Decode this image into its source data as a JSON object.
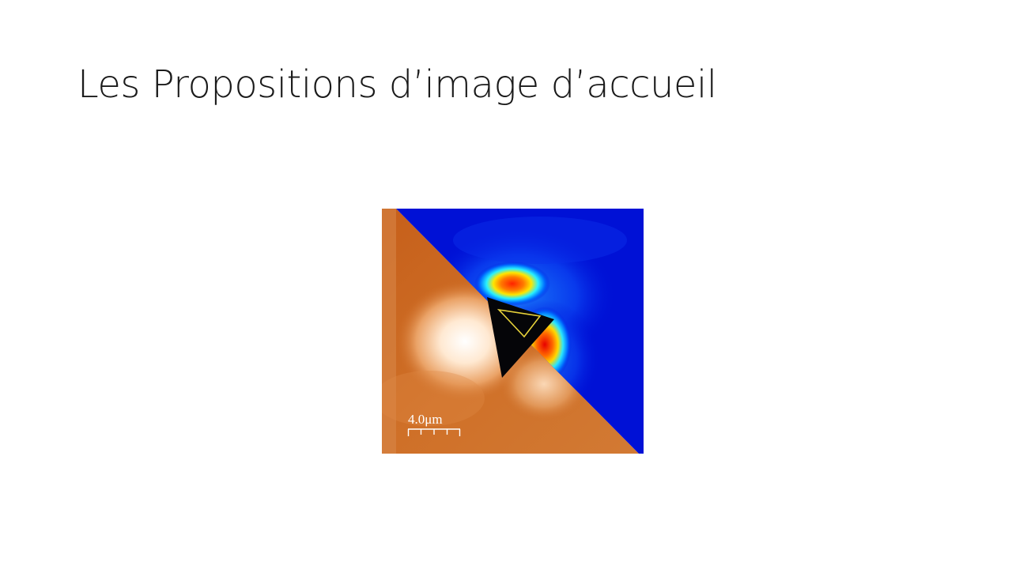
{
  "slide": {
    "title": "Les Propositions d’image d’accueil"
  },
  "figure": {
    "scale_bar_label": "4.0μm",
    "colors": {
      "afm_base": "#c9641c",
      "afm_highlight": "#fff6ec",
      "field_background": "#0011d6",
      "field_hot": "#ff2a00",
      "tip_outline": "#e6d13a"
    }
  }
}
